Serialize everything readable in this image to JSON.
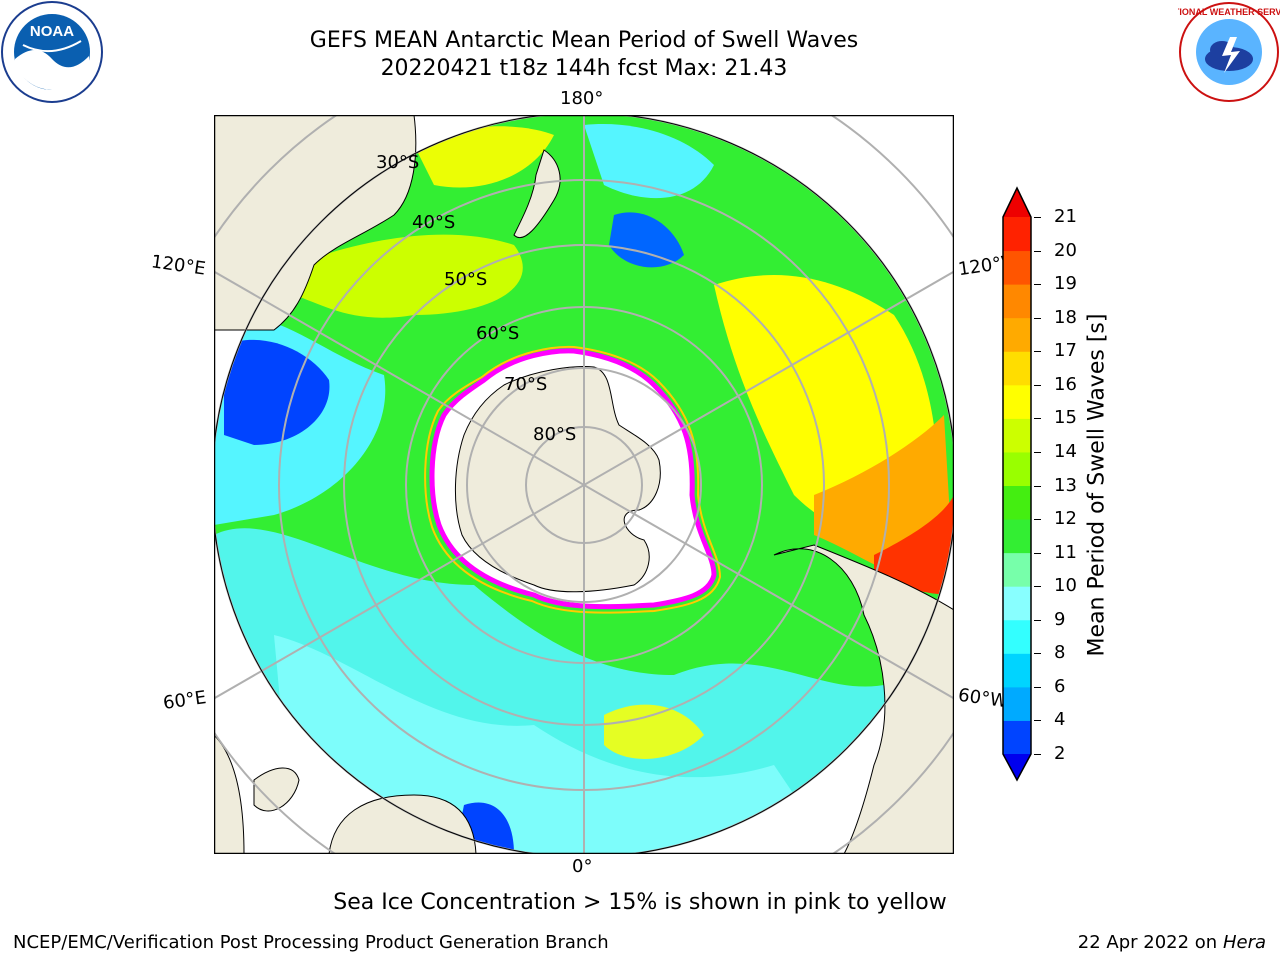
{
  "title": {
    "line1": "GEFS MEAN Antarctic Mean Period of Swell Waves",
    "line2": "20220421 t18z 144h fcst   Max: 21.43"
  },
  "map": {
    "projection": "south polar stereographic",
    "longitude_labels": [
      "180°",
      "120°E",
      "120°W",
      "60°E",
      "60°W",
      "0°"
    ],
    "latitude_labels": [
      "30°S",
      "40°S",
      "50°S",
      "60°S",
      "70°S",
      "80°S"
    ],
    "land_color": "#efecdc",
    "ocean_missing_color": "#ffffff",
    "sea_ice_edge_color": "#ff00ff",
    "regions": [
      {
        "area": "Indian Ocean west of Australia",
        "value": 3
      },
      {
        "area": "South Atlantic",
        "value": 8
      },
      {
        "area": "Southern Ocean",
        "value": 10.5
      },
      {
        "area": "Tasman Sea",
        "value": 13
      },
      {
        "area": "South Pacific east",
        "value": 15.5
      },
      {
        "area": "off Chile",
        "value": 20
      }
    ]
  },
  "colorbar": {
    "label": "Mean Period of Swell Waves [s]",
    "ticks": [
      "2",
      "4",
      "6",
      "8",
      "9",
      "10",
      "11",
      "12",
      "13",
      "14",
      "15",
      "16",
      "17",
      "18",
      "19",
      "20",
      "21"
    ],
    "colors": [
      "#0044ff",
      "#00aaff",
      "#00d4ff",
      "#33ffff",
      "#88ffff",
      "#77ffaa",
      "#33ee33",
      "#44ee11",
      "#99ff00",
      "#ccff00",
      "#ffff00",
      "#ffdd00",
      "#ffaa00",
      "#ff8800",
      "#ff5500",
      "#ff2200"
    ],
    "extend_low_color": "#0000ee",
    "extend_high_color": "#ee0000"
  },
  "note": "Sea Ice Concentration > 15% is shown in pink to yellow",
  "footer": {
    "left": "NCEP/EMC/Verification Post Processing Product Generation Branch",
    "right_date": "22 Apr 2022 on ",
    "right_machine": "Hera"
  },
  "logos": {
    "noaa": "NOAA",
    "nws": "NATIONAL WEATHER SERVICE"
  }
}
